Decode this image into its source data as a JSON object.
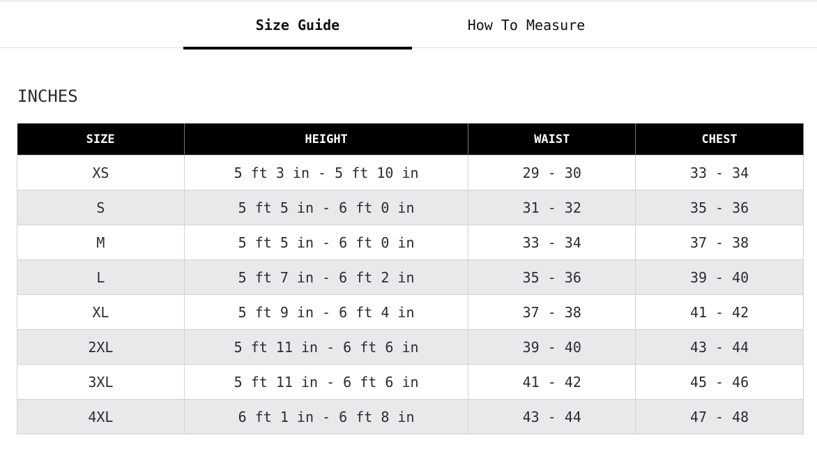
{
  "tabs": [
    {
      "label": "Size Guide",
      "active": true
    },
    {
      "label": "How To Measure",
      "active": false
    }
  ],
  "unit_heading": "INCHES",
  "table": {
    "headers": [
      "SIZE",
      "HEIGHT",
      "WAIST",
      "CHEST"
    ],
    "rows": [
      [
        "XS",
        "5 ft 3 in - 5 ft 10 in",
        "29 - 30",
        "33 - 34"
      ],
      [
        "S",
        "5 ft 5 in - 6 ft 0 in",
        "31 - 32",
        "35 - 36"
      ],
      [
        "M",
        "5 ft 5 in - 6 ft 0 in",
        "33 - 34",
        "37 - 38"
      ],
      [
        "L",
        "5 ft 7 in - 6 ft 2 in",
        "35 - 36",
        "39 - 40"
      ],
      [
        "XL",
        "5 ft 9 in - 6 ft 4 in",
        "37 - 38",
        "41 - 42"
      ],
      [
        "2XL",
        "5 ft 11 in - 6 ft 6 in",
        "39 - 40",
        "43 - 44"
      ],
      [
        "3XL",
        "5 ft 11 in - 6 ft 6 in",
        "41 - 42",
        "45 - 46"
      ],
      [
        "4XL",
        "6 ft 1 in - 6 ft 8 in",
        "43 - 44",
        "47 - 48"
      ]
    ]
  },
  "colors": {
    "header_bg": "#000000",
    "stripe": "#e9e8ea",
    "text": "#2b2b33"
  }
}
